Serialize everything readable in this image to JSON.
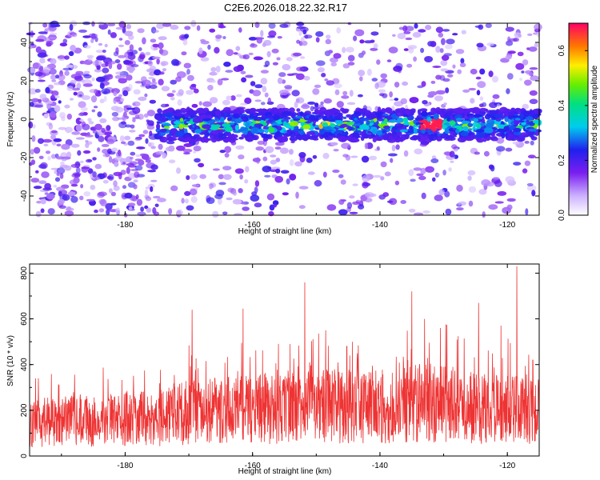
{
  "title": "C2E6.2026.018.22.32.R17",
  "chart_data": [
    {
      "type": "heatmap",
      "xlabel": "Height of straight line (km)",
      "ylabel": "Frequency (Hz)",
      "xlim": [
        -195,
        -115
      ],
      "ylim": [
        -50,
        50
      ],
      "xticks": [
        -180,
        -160,
        -140,
        -120
      ],
      "yticks": [
        -40,
        -20,
        0,
        20,
        40
      ],
      "colorbar": {
        "label": "Normalized spectral amplitude",
        "ticks": [
          "0.0",
          "0.2",
          "0.4",
          "0.6"
        ],
        "tick_values": [
          0,
          0.2,
          0.4,
          0.6
        ],
        "range": [
          0,
          0.7
        ]
      },
      "band": {
        "x_start": -175,
        "x_end": -115,
        "center_hz": -3,
        "half_width_hz": 8,
        "peak_x": -132,
        "peak_value": 0.68
      }
    },
    {
      "type": "line",
      "xlabel": "Height of straight line (km)",
      "ylabel": "SNR (10 * v/v)",
      "xlim": [
        -195,
        -115
      ],
      "ylim": [
        0,
        840
      ],
      "xticks": [
        -180,
        -160,
        -140,
        -120
      ],
      "yticks": [
        0,
        200,
        400,
        600,
        800
      ],
      "color": "#ee3333",
      "baseline": [
        {
          "x": -195,
          "y": 150
        },
        {
          "x": -185,
          "y": 155
        },
        {
          "x": -175,
          "y": 165
        },
        {
          "x": -170,
          "y": 190
        },
        {
          "x": -160,
          "y": 205
        },
        {
          "x": -150,
          "y": 220
        },
        {
          "x": -140,
          "y": 215
        },
        {
          "x": -132,
          "y": 235
        },
        {
          "x": -125,
          "y": 210
        },
        {
          "x": -115,
          "y": 195
        }
      ],
      "spikes": [
        {
          "x": -169.5,
          "y": 640
        },
        {
          "x": -161.5,
          "y": 645
        },
        {
          "x": -151.8,
          "y": 760
        },
        {
          "x": -148.5,
          "y": 550
        },
        {
          "x": -145.2,
          "y": 480
        },
        {
          "x": -135.0,
          "y": 720
        },
        {
          "x": -133.0,
          "y": 600
        },
        {
          "x": -130.5,
          "y": 560
        },
        {
          "x": -124.5,
          "y": 670
        },
        {
          "x": -121.0,
          "y": 570
        },
        {
          "x": -118.5,
          "y": 830
        },
        {
          "x": -116.0,
          "y": 420
        }
      ]
    }
  ]
}
